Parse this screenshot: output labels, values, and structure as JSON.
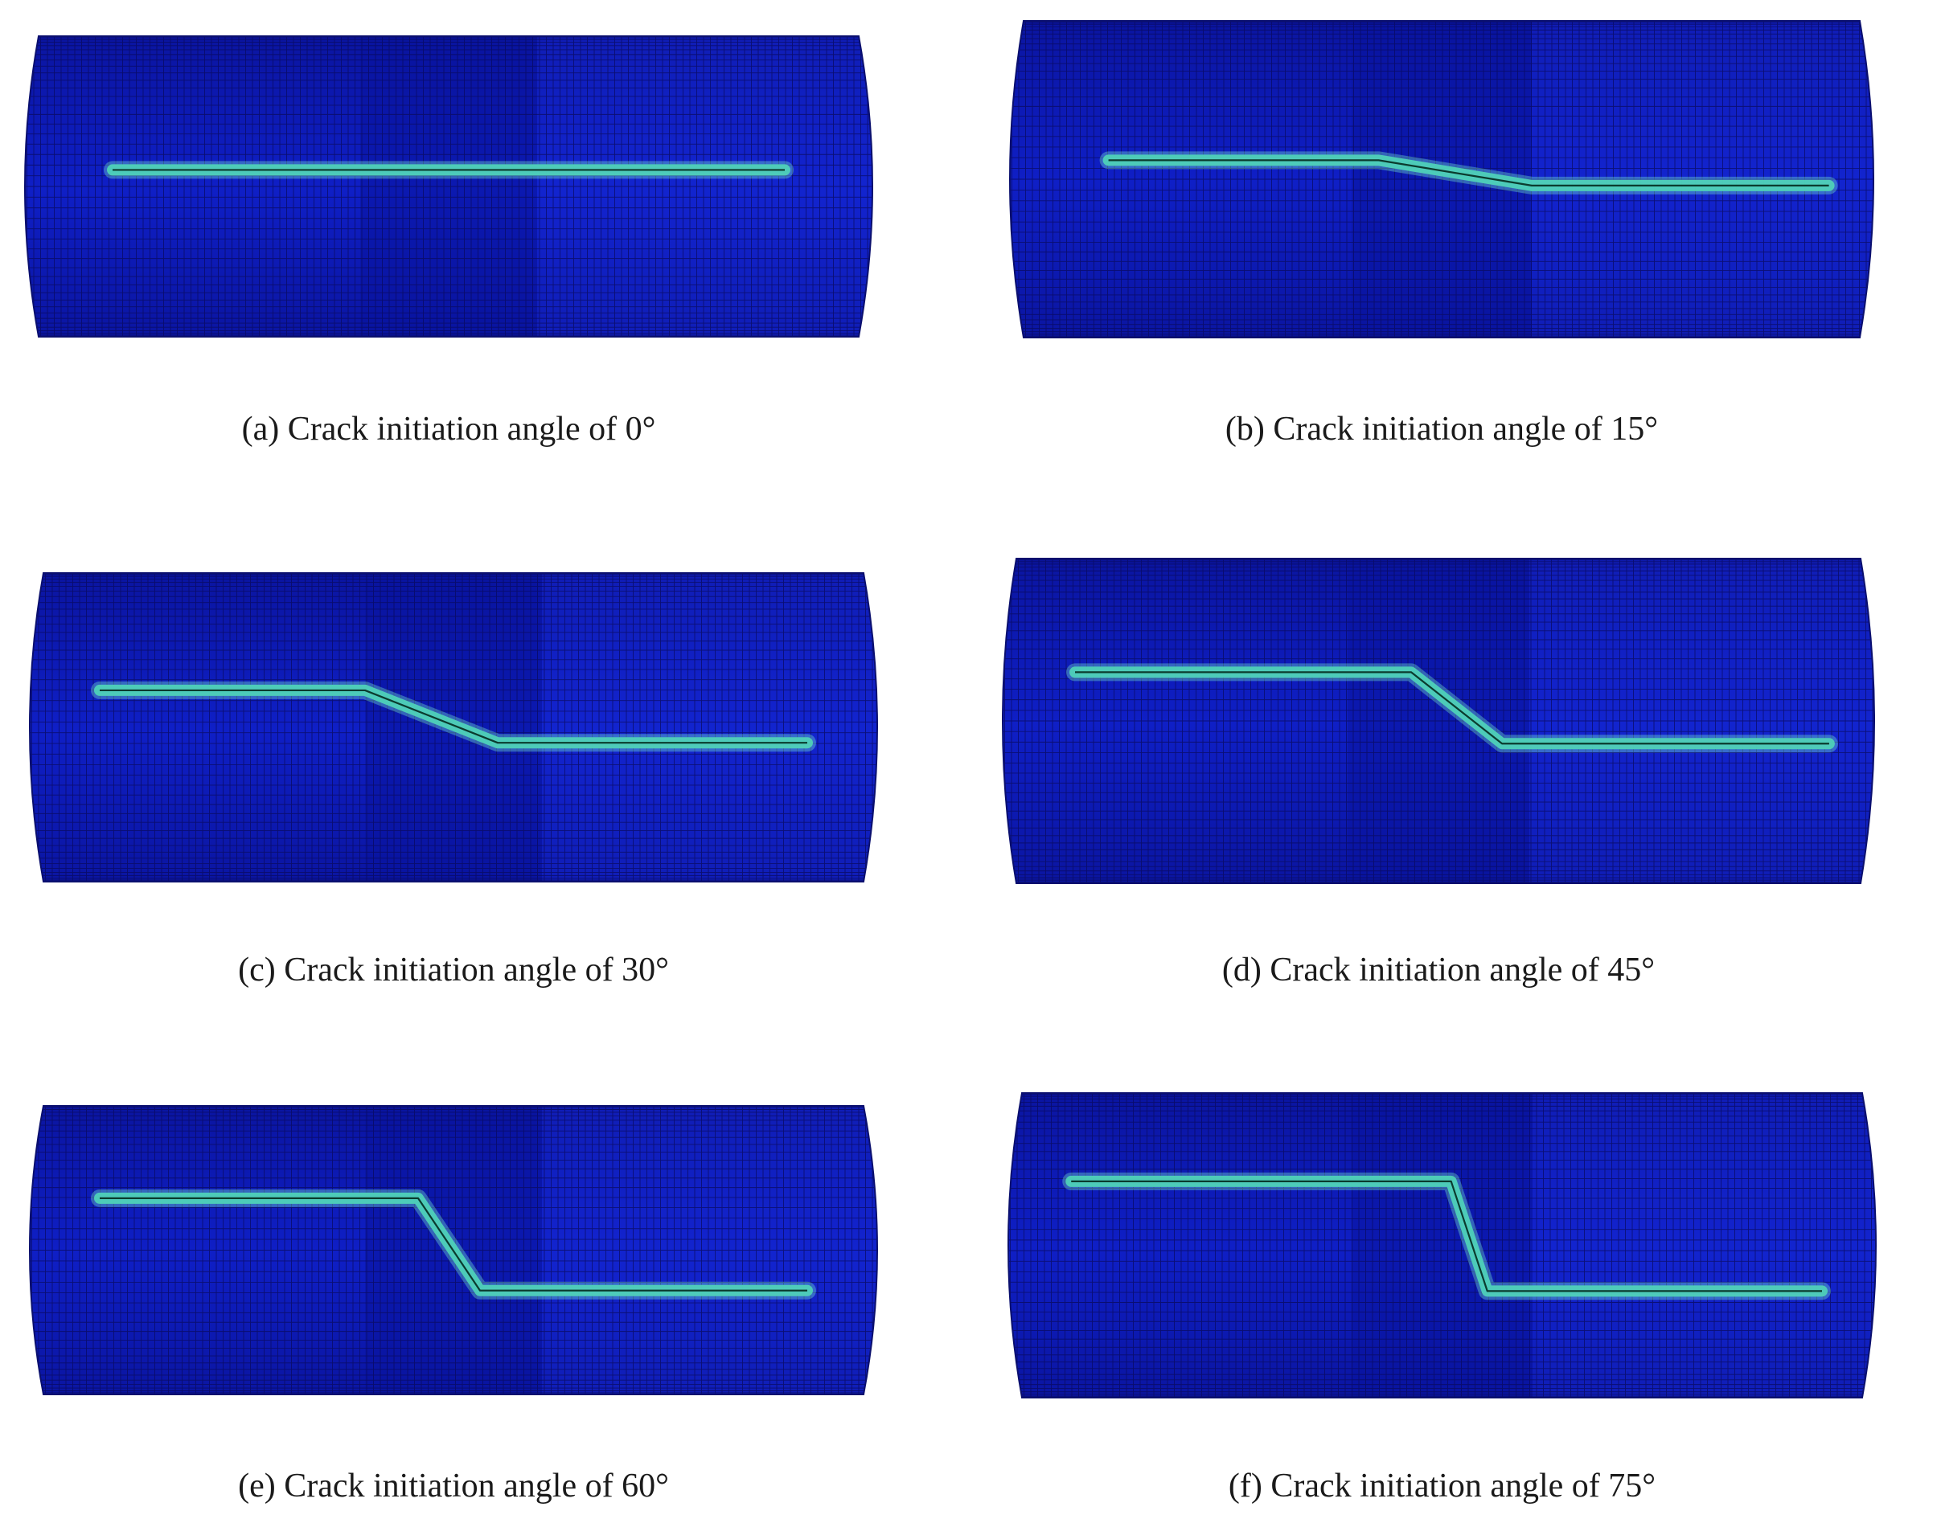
{
  "figure": {
    "panels": [
      {
        "id": "a",
        "caption": "(a) Crack initiation angle of 0°",
        "angle_deg": 0
      },
      {
        "id": "b",
        "caption": "(b) Crack initiation angle of 15°",
        "angle_deg": 15
      },
      {
        "id": "c",
        "caption": "(c) Crack initiation angle of 30°",
        "angle_deg": 30
      },
      {
        "id": "d",
        "caption": "(d) Crack initiation angle of 45°",
        "angle_deg": 45
      },
      {
        "id": "e",
        "caption": "(e) Crack initiation angle of 60°",
        "angle_deg": 60
      },
      {
        "id": "f",
        "caption": "(f) Crack initiation angle of 75°",
        "angle_deg": 75
      }
    ]
  },
  "colors": {
    "pipe_body": "#0f1fc6",
    "pipe_shade_mid": "#0a149e",
    "pipe_shade_light": "#1a2fe0",
    "mesh_line": "#0a0a5a",
    "crack_band": "#4fd1b8",
    "crack_glow": "#7ff5d0",
    "crack_line": "#0b3b2e"
  }
}
